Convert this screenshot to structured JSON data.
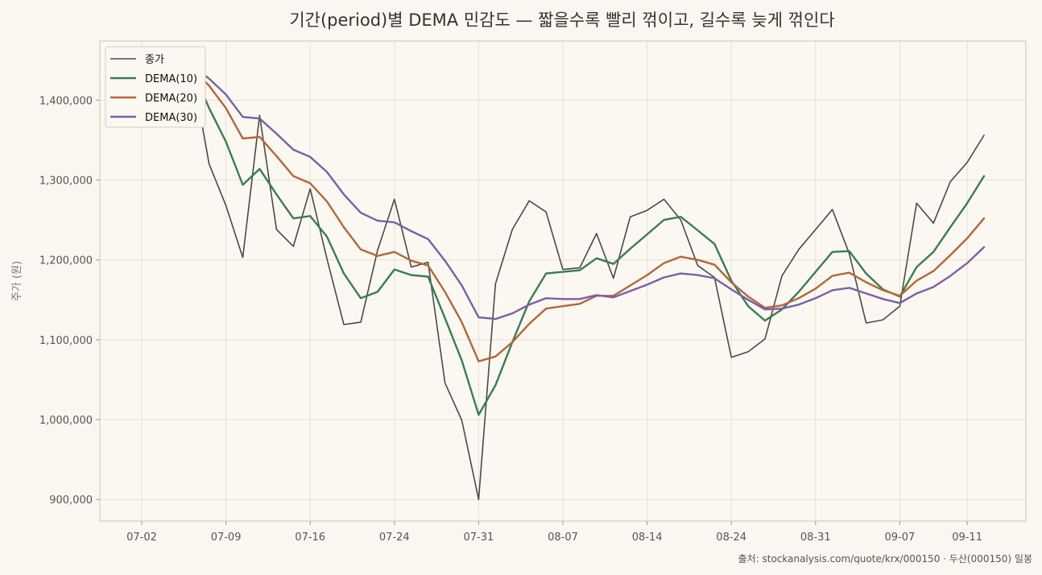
{
  "chart_data": {
    "type": "line",
    "title": "기간(period)별 DEMA 민감도 — 짧을수록 빨리 꺾이고, 길수록 늦게 꺾인다",
    "xlabel": "",
    "ylabel": "주가 (원)",
    "source": "출처: stockanalysis.com/quote/krx/000150 · 두산(000150) 일봉",
    "x_ticks": [
      "07-02",
      "07-09",
      "07-16",
      "07-24",
      "07-31",
      "08-07",
      "08-14",
      "08-24",
      "08-31",
      "09-07",
      "09-11"
    ],
    "x_tick_index": [
      0,
      5,
      10,
      15,
      20,
      25,
      30,
      35,
      40,
      45,
      49
    ],
    "y_ticks": [
      "900,000",
      "1,000,000",
      "1,100,000",
      "1,200,000",
      "1,300,000",
      "1,400,000"
    ],
    "y_tick_values": [
      900000,
      1000000,
      1100000,
      1200000,
      1300000,
      1400000
    ],
    "ylim": [
      873000,
      1474000
    ],
    "grid": true,
    "legend_position": "top-left",
    "series": [
      {
        "name": "종가",
        "color": "#4a4a45",
        "values": [
          1447000,
          1443000,
          1440000,
          1437000,
          1320000,
          1268000,
          1203000,
          1381000,
          1238000,
          1217000,
          1289000,
          1201000,
          1119000,
          1122000,
          1212000,
          1276000,
          1191000,
          1197000,
          1046000,
          999000,
          900000,
          1170000,
          1238000,
          1274000,
          1260000,
          1188000,
          1190000,
          1233000,
          1177000,
          1254000,
          1262000,
          1276000,
          1250000,
          1193000,
          1178000,
          1078000,
          1085000,
          1101000,
          1180000,
          1213000,
          1238000,
          1263000,
          1208000,
          1121000,
          1125000,
          1142000,
          1271000,
          1246000,
          1298000,
          1322000,
          1356000
        ]
      },
      {
        "name": "DEMA(10)",
        "color": "#3a7d50",
        "values": [
          1447000,
          1444000,
          1441000,
          1438000,
          1390000,
          1348000,
          1294000,
          1314000,
          1282000,
          1252000,
          1255000,
          1229000,
          1183000,
          1152000,
          1160000,
          1188000,
          1181000,
          1179000,
          1127000,
          1074000,
          1006000,
          1043000,
          1097000,
          1148000,
          1183000,
          1185000,
          1187000,
          1202000,
          1195000,
          1214000,
          1232000,
          1250000,
          1254000,
          1237000,
          1220000,
          1174000,
          1142000,
          1124000,
          1138000,
          1160000,
          1185000,
          1210000,
          1211000,
          1183000,
          1163000,
          1154000,
          1191000,
          1210000,
          1241000,
          1271000,
          1305000
        ]
      },
      {
        "name": "DEMA(20)",
        "color": "#b5653a",
        "values": [
          1447000,
          1445000,
          1442000,
          1440000,
          1418000,
          1390000,
          1352000,
          1354000,
          1330000,
          1305000,
          1296000,
          1273000,
          1241000,
          1213000,
          1205000,
          1210000,
          1199000,
          1193000,
          1160000,
          1122000,
          1073000,
          1079000,
          1097000,
          1120000,
          1139000,
          1142000,
          1145000,
          1155000,
          1155000,
          1168000,
          1181000,
          1196000,
          1204000,
          1200000,
          1194000,
          1172000,
          1154000,
          1140000,
          1143000,
          1152000,
          1164000,
          1180000,
          1184000,
          1172000,
          1162000,
          1155000,
          1174000,
          1186000,
          1206000,
          1227000,
          1252000
        ]
      },
      {
        "name": "DEMA(30)",
        "color": "#7b5ea7",
        "values": [
          1447000,
          1446000,
          1444000,
          1442000,
          1427000,
          1407000,
          1379000,
          1377000,
          1358000,
          1338000,
          1329000,
          1310000,
          1282000,
          1259000,
          1249000,
          1247000,
          1236000,
          1226000,
          1199000,
          1168000,
          1128000,
          1126000,
          1133000,
          1144000,
          1152000,
          1151000,
          1151000,
          1156000,
          1153000,
          1161000,
          1169000,
          1178000,
          1183000,
          1181000,
          1177000,
          1163000,
          1150000,
          1138000,
          1139000,
          1144000,
          1152000,
          1162000,
          1165000,
          1158000,
          1151000,
          1146000,
          1158000,
          1166000,
          1180000,
          1196000,
          1216000
        ]
      }
    ]
  }
}
